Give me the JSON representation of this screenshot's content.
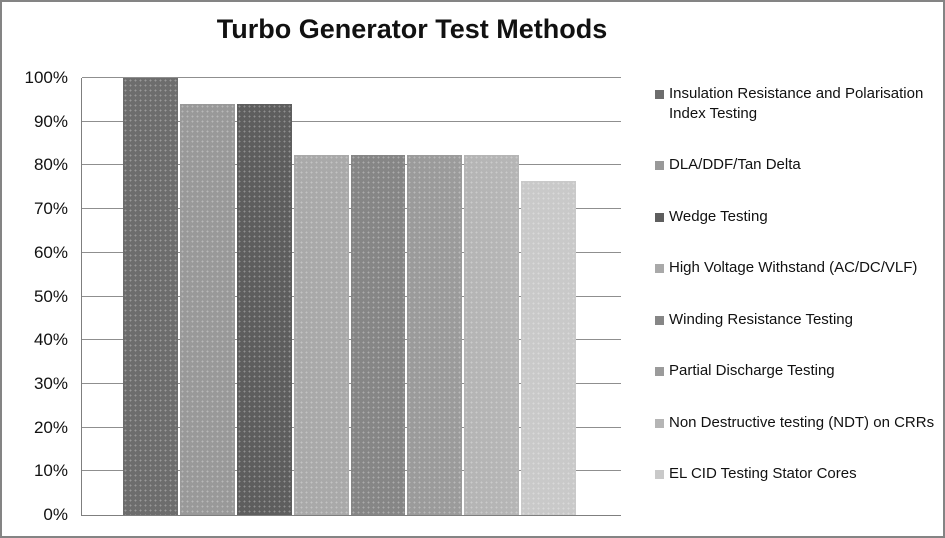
{
  "chart_data": {
    "type": "bar",
    "title": "Turbo Generator Test Methods",
    "categories": [
      "Insulation Resistance and Polarisation Index Testing",
      "DLA/DDF/Tan Delta",
      "Wedge Testing",
      "High Voltage Withstand (AC/DC/VLF)",
      "Winding Resistance Testing",
      "Partial Discharge Testing",
      "Non Destructive testing (NDT) on CRRs",
      "EL CID Testing Stator Cores"
    ],
    "values": [
      100,
      94.1,
      94.1,
      82.4,
      82.4,
      82.4,
      82.4,
      76.5
    ],
    "unit": "%",
    "xlabel": "",
    "ylabel": "",
    "ylim": [
      0,
      100
    ],
    "ytick_step": 10,
    "ytick_labels": [
      "0%",
      "10%",
      "20%",
      "30%",
      "40%",
      "50%",
      "60%",
      "70%",
      "80%",
      "90%",
      "100%"
    ],
    "grid": true,
    "legend_position": "right",
    "bar_colors": [
      "#6d6d6d",
      "#999999",
      "#5e5e5e",
      "#a9a9a9",
      "#868686",
      "#9b9b9b",
      "#b5b5b5",
      "#c9c9c9"
    ],
    "axis_color": "#7f7f7f",
    "gridline_color": "#8f8f8f",
    "canvas_border_color": "#848484",
    "background_color": "#ffffff"
  }
}
